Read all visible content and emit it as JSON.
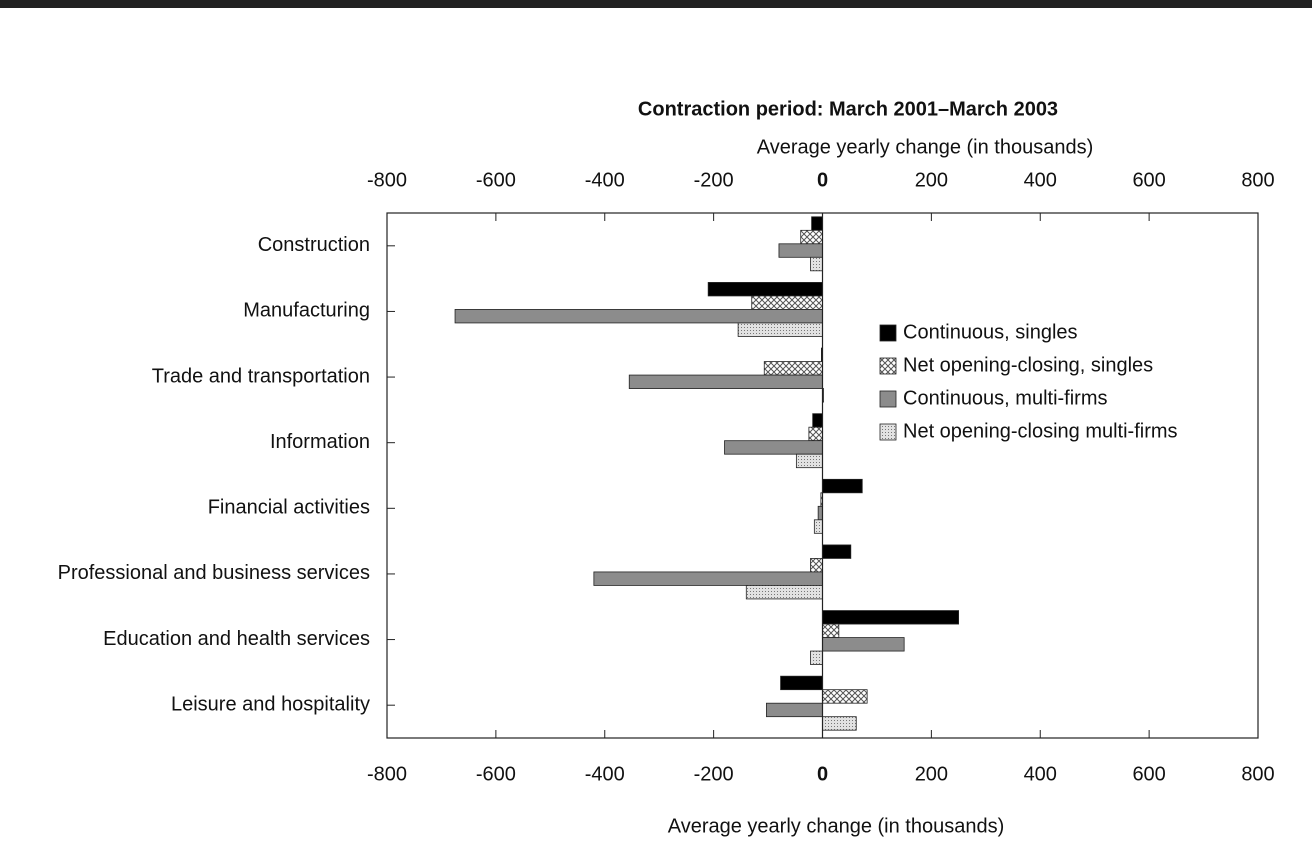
{
  "chart_data": {
    "type": "hbar",
    "title": "Contraction period:  March 2001–March 2003",
    "xlabel": "Average yearly change (in thousands)",
    "categories": [
      "Construction",
      "Manufacturing",
      "Trade and transportation",
      "Information",
      "Financial activities",
      "Professional and business services",
      "Education and health services",
      "Leisure and hospitality"
    ],
    "series": [
      {
        "name": "Continuous, singles",
        "color": "#000000",
        "pattern": "solid",
        "values": [
          -20,
          -210,
          -2,
          -18,
          73,
          52,
          250,
          -77
        ]
      },
      {
        "name": "Net opening-closing, singles",
        "color": "#555555",
        "pattern": "crosshatch",
        "values": [
          -40,
          -130,
          -107,
          -25,
          -3,
          -22,
          30,
          82
        ]
      },
      {
        "name": "Continuous, multi-firms",
        "color": "#8c8c8c",
        "pattern": "solid",
        "values": [
          -80,
          -675,
          -355,
          -180,
          -8,
          -420,
          150,
          -103
        ]
      },
      {
        "name": "Net opening-closing multi-firms",
        "color": "#9a9a9a",
        "pattern": "dots",
        "values": [
          -22,
          -155,
          2,
          -48,
          -15,
          -140,
          -22,
          62
        ]
      }
    ],
    "xlim": [
      -800,
      800
    ],
    "xticks": [
      -800,
      -600,
      -400,
      -200,
      0,
      200,
      400,
      600,
      800
    ]
  }
}
